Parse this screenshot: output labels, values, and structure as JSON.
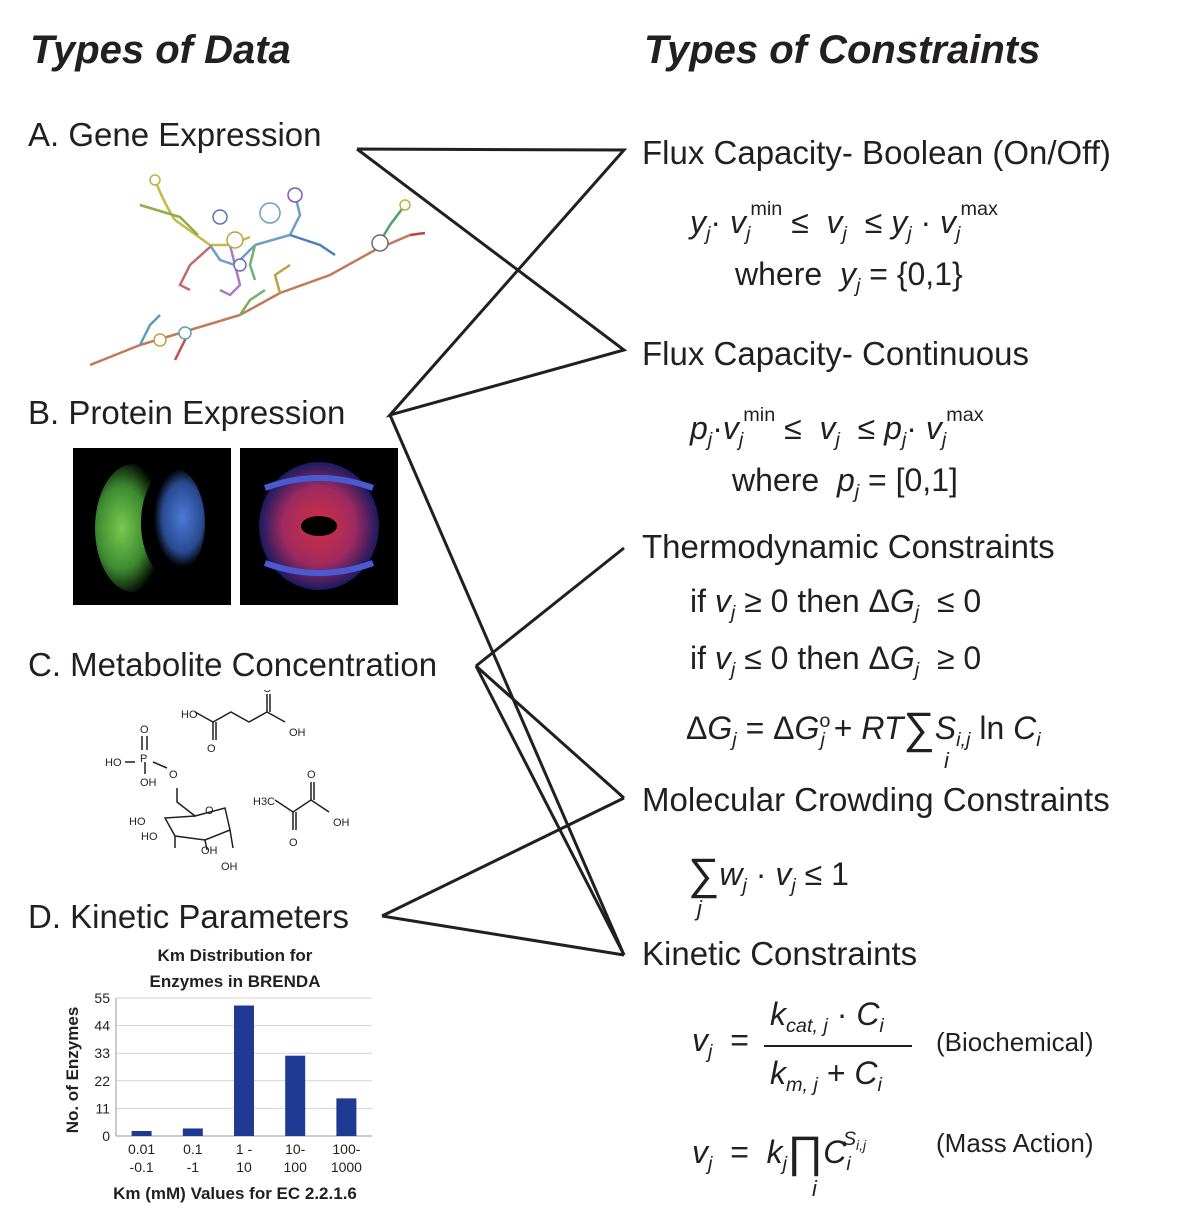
{
  "headings": {
    "data": "Types of Data",
    "constraints": "Types of Constraints"
  },
  "data_types": {
    "a": "A. Gene Expression",
    "b": "B. Protein Expression",
    "c": "C. Metabolite Concentration",
    "d": "D. Kinetic Parameters"
  },
  "constraint_types": {
    "boolean": "Flux Capacity- Boolean (On/Off)",
    "continuous": "Flux Capacity- Continuous",
    "thermo": "Thermodynamic Constraints",
    "crowding": "Molecular Crowding Constraints",
    "kinetic": "Kinetic Constraints"
  },
  "equations": {
    "where": "where",
    "boolean_set": "= {0,1}",
    "continuous_set": "= [0,1]",
    "thermo_if": "if",
    "thermo_then": "then",
    "ge0": "≥ 0",
    "le0": "≤ 0",
    "biochemical": "(Biochemical)",
    "mass_action": "(Mass Action)"
  },
  "molecule_labels": {
    "ho": "HO",
    "oh": "OH",
    "o": "O",
    "p": "P",
    "h3c": "H3C"
  },
  "chart_data": {
    "type": "bar",
    "title": "Km Distribution for Enzymes in BRENDA",
    "title_lines": [
      "Km Distribution for",
      "Enzymes in BRENDA"
    ],
    "xlabel": "Km (mM) Values for EC 2.2.1.6",
    "ylabel": "No. of Enzymes",
    "categories": [
      {
        "line1": "0.01",
        "line2": "-0.1"
      },
      {
        "line1": "0.1",
        "line2": "-1"
      },
      {
        "line1": "1 -",
        "line2": "10"
      },
      {
        "line1": "10-",
        "line2": "100"
      },
      {
        "line1": "100-",
        "line2": "1000"
      }
    ],
    "values": [
      2,
      3,
      52,
      32,
      15
    ],
    "ylim": [
      0,
      55
    ],
    "yticks": [
      "0",
      "11",
      "22",
      "33",
      "44",
      "55"
    ],
    "grid": true,
    "bar_color": "#1f3a93"
  },
  "colors": {
    "text": "#231f20",
    "line": "#231f20",
    "bar": "#1f3a93"
  }
}
